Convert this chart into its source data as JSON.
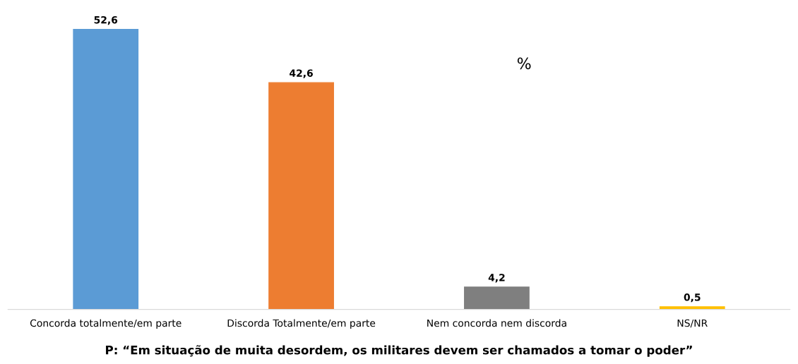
{
  "chart_data": {
    "type": "bar",
    "title": "P: “Em situação de muita desordem, os militares devem ser chamados a tomar o poder”",
    "categories": [
      "Concorda totalmente/em parte",
      "Discorda Totalmente/em parte",
      "Nem concorda nem discorda",
      "NS/NR"
    ],
    "values": [
      52.6,
      42.6,
      4.2,
      0.5
    ],
    "colors": [
      "#5b9bd5",
      "#ed7d31",
      "#7f7f7f",
      "#ffc000"
    ],
    "value_labels": [
      "52,6",
      "42,6",
      "4,2",
      "0,5"
    ],
    "annotations": [
      "%"
    ]
  }
}
